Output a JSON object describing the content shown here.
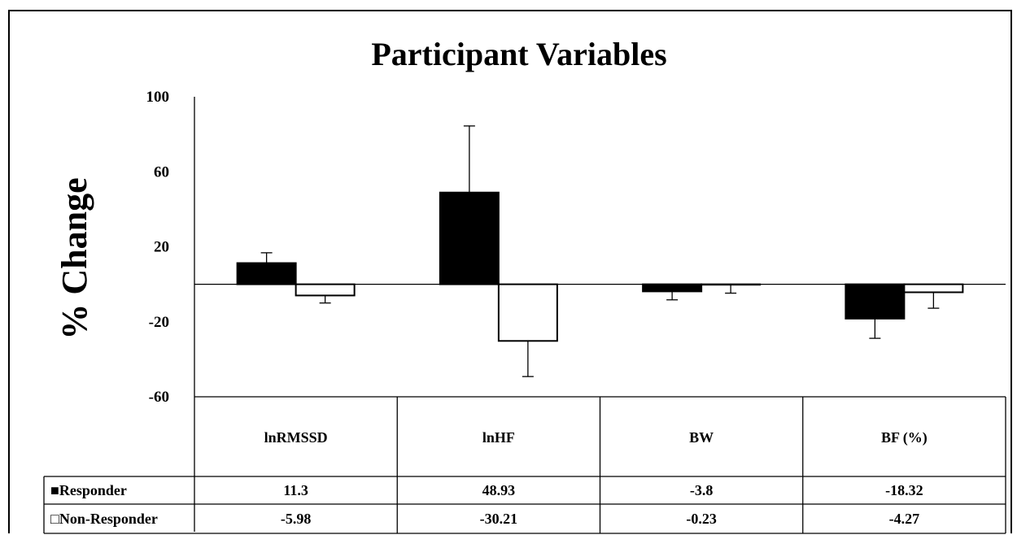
{
  "chart_data": {
    "type": "bar",
    "title": "Participant Variables",
    "ylabel": "% Change",
    "xlabel": "",
    "ylim": [
      -60,
      100
    ],
    "y_ticks": [
      "100",
      "60",
      "20",
      "-20",
      "-60"
    ],
    "y_tick_values": [
      100,
      60,
      20,
      -20,
      -60
    ],
    "categories": [
      "lnRMSSD",
      "lnHF",
      "BW",
      "BF (%)"
    ],
    "series": [
      {
        "name": "Responder",
        "legend_marker": "■",
        "fill": "#000000",
        "values": [
          11.3,
          48.93,
          -3.8,
          -18.32
        ],
        "value_labels": [
          "11.3",
          "48.93",
          "-3.8",
          "-18.32"
        ],
        "error": [
          5.5,
          35.5,
          4.5,
          10.5
        ]
      },
      {
        "name": "Non-Responder",
        "legend_marker": "□",
        "fill": "#ffffff",
        "values": [
          -5.98,
          -30.21,
          -0.23,
          -4.27
        ],
        "value_labels": [
          "-5.98",
          "-30.21",
          "-0.23",
          "-4.27"
        ],
        "error": [
          4.0,
          19.0,
          4.5,
          8.5
        ]
      }
    ],
    "grid": false,
    "legend": "data-table"
  }
}
